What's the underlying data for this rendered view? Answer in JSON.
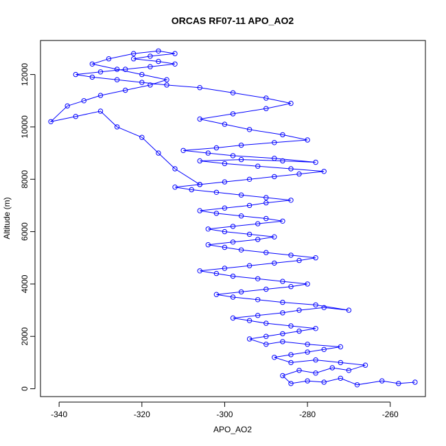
{
  "chart_data": {
    "type": "scatter",
    "title": "ORCAS RF07-11 APO_AO2",
    "xlabel": "APO_AO2",
    "ylabel": "Altitude (m)",
    "xlim": [
      -344.5,
      -251.5
    ],
    "ylim": [
      -300,
      13300
    ],
    "x_ticks": [
      -340,
      -320,
      -300,
      -280,
      -260
    ],
    "y_ticks": [
      0,
      2000,
      4000,
      6000,
      8000,
      10000,
      12000
    ],
    "x_tick_labels": [
      "-340",
      "-320",
      "-300",
      "-280",
      "-260"
    ],
    "y_tick_labels": [
      "0",
      "2000",
      "4000",
      "6000",
      "8000",
      "10000",
      "12000"
    ],
    "grid": false,
    "legend": "none",
    "series_style": "points connected by lines",
    "color": "#0000ff",
    "series": [
      {
        "values": [
          [
            -254,
            250
          ],
          [
            -258,
            200
          ],
          [
            -262,
            300
          ],
          [
            -268,
            150
          ],
          [
            -272,
            400
          ],
          [
            -276,
            250
          ],
          [
            -280,
            300
          ],
          [
            -284,
            200
          ],
          [
            -286,
            500
          ],
          [
            -282,
            700
          ],
          [
            -278,
            600
          ],
          [
            -274,
            800
          ],
          [
            -270,
            700
          ],
          [
            -266,
            900
          ],
          [
            -272,
            1000
          ],
          [
            -278,
            1100
          ],
          [
            -284,
            1000
          ],
          [
            -288,
            1200
          ],
          [
            -284,
            1300
          ],
          [
            -280,
            1400
          ],
          [
            -276,
            1500
          ],
          [
            -272,
            1600
          ],
          [
            -280,
            1700
          ],
          [
            -286,
            1800
          ],
          [
            -290,
            1700
          ],
          [
            -294,
            1900
          ],
          [
            -290,
            2000
          ],
          [
            -286,
            2100
          ],
          [
            -282,
            2200
          ],
          [
            -278,
            2300
          ],
          [
            -284,
            2400
          ],
          [
            -290,
            2500
          ],
          [
            -294,
            2600
          ],
          [
            -298,
            2700
          ],
          [
            -292,
            2800
          ],
          [
            -286,
            2900
          ],
          [
            -282,
            3000
          ],
          [
            -276,
            3100
          ],
          [
            -270,
            3000
          ],
          [
            -278,
            3200
          ],
          [
            -286,
            3300
          ],
          [
            -292,
            3400
          ],
          [
            -298,
            3500
          ],
          [
            -302,
            3600
          ],
          [
            -296,
            3700
          ],
          [
            -290,
            3800
          ],
          [
            -284,
            3900
          ],
          [
            -280,
            4000
          ],
          [
            -286,
            4100
          ],
          [
            -292,
            4200
          ],
          [
            -298,
            4300
          ],
          [
            -302,
            4400
          ],
          [
            -306,
            4500
          ],
          [
            -300,
            4600
          ],
          [
            -294,
            4700
          ],
          [
            -288,
            4800
          ],
          [
            -282,
            4900
          ],
          [
            -278,
            5000
          ],
          [
            -284,
            5100
          ],
          [
            -290,
            5200
          ],
          [
            -296,
            5300
          ],
          [
            -300,
            5400
          ],
          [
            -304,
            5500
          ],
          [
            -298,
            5600
          ],
          [
            -292,
            5700
          ],
          [
            -288,
            5800
          ],
          [
            -294,
            5900
          ],
          [
            -300,
            6000
          ],
          [
            -304,
            6100
          ],
          [
            -298,
            6200
          ],
          [
            -292,
            6300
          ],
          [
            -286,
            6400
          ],
          [
            -290,
            6500
          ],
          [
            -296,
            6600
          ],
          [
            -302,
            6700
          ],
          [
            -306,
            6800
          ],
          [
            -300,
            6900
          ],
          [
            -294,
            7000
          ],
          [
            -290,
            7100
          ],
          [
            -284,
            7200
          ],
          [
            -290,
            7300
          ],
          [
            -296,
            7400
          ],
          [
            -302,
            7500
          ],
          [
            -308,
            7600
          ],
          [
            -312,
            7700
          ],
          [
            -306,
            7800
          ],
          [
            -300,
            7900
          ],
          [
            -294,
            8000
          ],
          [
            -288,
            8100
          ],
          [
            -282,
            8200
          ],
          [
            -276,
            8300
          ],
          [
            -284,
            8400
          ],
          [
            -292,
            8500
          ],
          [
            -300,
            8600
          ],
          [
            -306,
            8700
          ],
          [
            -296,
            8750
          ],
          [
            -286,
            8700
          ],
          [
            -278,
            8650
          ],
          [
            -288,
            8800
          ],
          [
            -298,
            8900
          ],
          [
            -304,
            9000
          ],
          [
            -310,
            9100
          ],
          [
            -302,
            9200
          ],
          [
            -296,
            9300
          ],
          [
            -288,
            9400
          ],
          [
            -280,
            9500
          ],
          [
            -286,
            9700
          ],
          [
            -294,
            9900
          ],
          [
            -300,
            10100
          ],
          [
            -306,
            10300
          ],
          [
            -298,
            10500
          ],
          [
            -290,
            10700
          ],
          [
            -284,
            10900
          ],
          [
            -290,
            11100
          ],
          [
            -298,
            11300
          ],
          [
            -306,
            11500
          ],
          [
            -314,
            11600
          ],
          [
            -320,
            11700
          ],
          [
            -326,
            11800
          ],
          [
            -332,
            11900
          ],
          [
            -336,
            12000
          ],
          [
            -330,
            12100
          ],
          [
            -324,
            12200
          ],
          [
            -318,
            12300
          ],
          [
            -312,
            12400
          ],
          [
            -316,
            12500
          ],
          [
            -322,
            12600
          ],
          [
            -318,
            12700
          ],
          [
            -312,
            12800
          ],
          [
            -316,
            12900
          ],
          [
            -322,
            12800
          ],
          [
            -328,
            12600
          ],
          [
            -332,
            12400
          ],
          [
            -326,
            12200
          ],
          [
            -320,
            12000
          ],
          [
            -314,
            11800
          ],
          [
            -318,
            11600
          ],
          [
            -324,
            11400
          ],
          [
            -330,
            11200
          ],
          [
            -334,
            11000
          ],
          [
            -338,
            10800
          ],
          [
            -342,
            10200
          ],
          [
            -336,
            10400
          ],
          [
            -330,
            10600
          ],
          [
            -326,
            10000
          ],
          [
            -320,
            9600
          ],
          [
            -316,
            9000
          ],
          [
            -312,
            8400
          ],
          [
            -306,
            7800
          ]
        ]
      }
    ]
  }
}
